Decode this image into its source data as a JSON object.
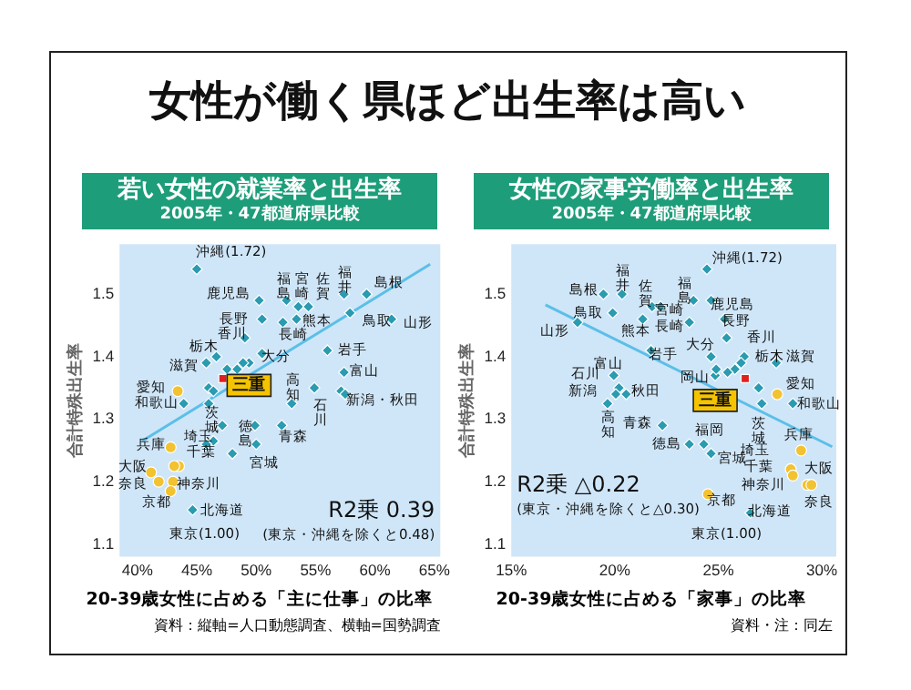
{
  "chart_data": [
    {
      "type": "scatter",
      "title": "若い女性の就業率と出生率",
      "subtitle": "2005年・47都道府県比較",
      "xlabel": "20-39歳女性に占める「主に仕事」の比率",
      "ylabel": "合計特殊出生率",
      "xlim": [
        38.5,
        65.5
      ],
      "xticks": [
        {
          "value": 40,
          "label": "40%"
        },
        {
          "value": 45,
          "label": "45%"
        },
        {
          "value": 50,
          "label": "50%"
        },
        {
          "value": 55,
          "label": "55%"
        },
        {
          "value": 60,
          "label": "60%"
        },
        {
          "value": 65,
          "label": "65%"
        }
      ],
      "ylim": [
        1.08,
        1.58
      ],
      "yticks": [
        1.1,
        1.2,
        1.3,
        1.4,
        1.5
      ],
      "series": [
        {
          "marker": "diamond",
          "color": "#2a9bb0",
          "x": [
            45.0,
            50.25,
            52.55,
            53.55,
            54.4,
            57.4,
            59.3,
            57.9,
            61.4,
            50.5,
            52.25,
            53.4,
            49.05,
            56.0,
            50.5,
            49.4,
            48.9,
            46.65,
            45.8,
            47.55,
            48.4,
            57.4,
            54.9,
            57.15,
            57.5,
            46.0,
            46.4,
            43.9,
            46.0,
            53.0,
            47.15,
            52.15,
            49.9,
            50.0,
            46.4,
            45.8,
            48.0,
            44.65
          ],
          "values": [
            1.54,
            1.49,
            1.49,
            1.48,
            1.48,
            1.5,
            1.5,
            1.47,
            1.46,
            1.46,
            1.455,
            1.46,
            1.43,
            1.41,
            1.405,
            1.39,
            1.39,
            1.4,
            1.39,
            1.38,
            1.38,
            1.375,
            1.35,
            1.345,
            1.34,
            1.35,
            1.345,
            1.325,
            1.325,
            1.325,
            1.29,
            1.29,
            1.29,
            1.26,
            1.265,
            1.26,
            1.245,
            1.155
          ]
        },
        {
          "marker": "circle",
          "color": "#f2c230",
          "x": [
            43.4,
            42.8,
            43.5,
            43.1,
            41.15,
            41.8,
            43.0,
            42.8
          ],
          "values": [
            1.345,
            1.255,
            1.225,
            1.225,
            1.215,
            1.2,
            1.2,
            1.185
          ]
        },
        {
          "marker": "square",
          "color": "#e02020",
          "x": [
            47.2
          ],
          "values": [
            1.365
          ]
        },
        {
          "type": "line",
          "marker": "none",
          "color": "#5bbfe8",
          "x": [
            40.4,
            64.65
          ],
          "values": [
            1.265,
            1.548
          ]
        }
      ],
      "annotations": [
        "女性が働く県ほど出生率は高い",
        "R2乗 0.39",
        "(東京・沖縄を除くと0.48)",
        "資料：縦軸=人口動態調査、横軸=国勢調査",
        "沖縄(1.72)",
        "福島",
        "宮崎",
        "佐賀",
        "福井",
        "島根",
        "鹿児島",
        "長野",
        "香川",
        "熊本",
        "長崎",
        "鳥取",
        "山形",
        "栃木",
        "大分",
        "岩手",
        "滋賀",
        "高知",
        "富山",
        "愛知",
        "和歌山",
        "石川",
        "新潟・秋田",
        "茨城",
        "徳島",
        "青森",
        "埼玉",
        "兵庫",
        "千葉",
        "宮城",
        "大阪",
        "奈良",
        "神奈川",
        "京都",
        "北海道",
        "東京(1.00)",
        "三重"
      ]
    },
    {
      "type": "scatter",
      "title": "女性の家事労働率と出生率",
      "subtitle": "2005年・47都道府県比較",
      "xlabel": "20-39歳女性に占める「家事」の比率",
      "ylabel": "合計特殊出生率",
      "xlim": [
        15,
        30.7
      ],
      "xticks": [
        {
          "value": 15,
          "label": "15%"
        },
        {
          "value": 20,
          "label": "20%"
        },
        {
          "value": 25,
          "label": "25%"
        },
        {
          "value": 30,
          "label": "30%"
        }
      ],
      "ylim": [
        1.08,
        1.58
      ],
      "yticks": [
        1.1,
        1.2,
        1.3,
        1.4,
        1.5
      ],
      "series": [
        {
          "marker": "diamond",
          "color": "#2a9bb0",
          "x": [
            24.45,
            19.45,
            20.35,
            19.9,
            18.2,
            21.8,
            22.2,
            23.8,
            24.65,
            21.35,
            23.6,
            25.3,
            25.4,
            21.75,
            24.65,
            26.25,
            26.1,
            25.8,
            25.45,
            24.85,
            24.9,
            27.8,
            19.95,
            20.2,
            20.05,
            20.55,
            19.65,
            27.1,
            26.95,
            28.6,
            22.3,
            23.6,
            24.3,
            24.65,
            26.55
          ],
          "values": [
            1.54,
            1.5,
            1.5,
            1.47,
            1.455,
            1.48,
            1.48,
            1.49,
            1.49,
            1.46,
            1.455,
            1.46,
            1.43,
            1.41,
            1.4,
            1.4,
            1.39,
            1.38,
            1.375,
            1.37,
            1.38,
            1.39,
            1.37,
            1.35,
            1.34,
            1.34,
            1.325,
            1.325,
            1.35,
            1.325,
            1.29,
            1.26,
            1.26,
            1.245,
            1.15
          ]
        },
        {
          "marker": "circle",
          "color": "#f2c230",
          "x": [
            27.85,
            29.0,
            28.5,
            28.6,
            29.3,
            29.5,
            24.5
          ],
          "values": [
            1.34,
            1.25,
            1.22,
            1.21,
            1.195,
            1.195,
            1.18
          ]
        },
        {
          "marker": "square",
          "color": "#e02020",
          "x": [
            26.3
          ],
          "values": [
            1.365
          ]
        },
        {
          "type": "line",
          "marker": "none",
          "color": "#5bbfe8",
          "x": [
            16.65,
            30.5
          ],
          "values": [
            1.483,
            1.256
          ]
        }
      ],
      "annotations": [
        "R2乗 △0.22",
        "(東京・沖縄を除くと△0.30)",
        "資料・注：同左",
        "沖縄(1.72)",
        "福井",
        "島根",
        "佐賀",
        "福島",
        "鹿児島",
        "鳥取",
        "宮崎",
        "山形",
        "熊本",
        "長崎",
        "長野",
        "香川",
        "大分",
        "岩手",
        "栃木",
        "滋賀",
        "富山",
        "石川",
        "新潟",
        "秋田",
        "岡山",
        "愛知",
        "和歌山",
        "高知",
        "青森",
        "茨城",
        "福岡",
        "徳島",
        "兵庫",
        "埼玉",
        "宮城",
        "千葉",
        "大阪",
        "神奈川",
        "京都",
        "奈良",
        "北海道",
        "東京(1.00)",
        "三重"
      ]
    }
  ]
}
